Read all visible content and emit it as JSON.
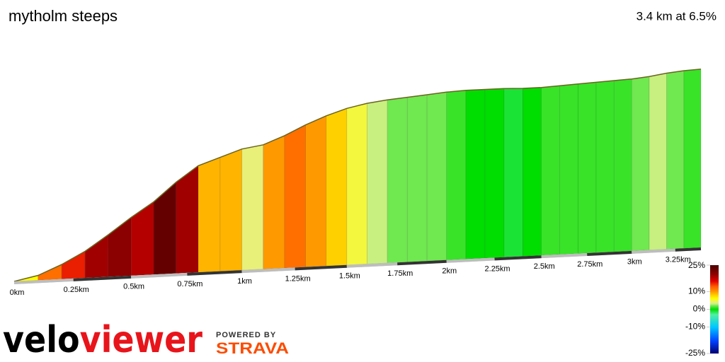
{
  "chart_data": {
    "type": "elevation",
    "title": "mytholm steeps",
    "subtitle": "3.4 km at 6.5%",
    "x": [
      0,
      0.1,
      0.2,
      0.3,
      0.4,
      0.5,
      0.6,
      0.7,
      0.8,
      0.9,
      1.0,
      1.1,
      1.2,
      1.3,
      1.4,
      1.5,
      1.6,
      1.7,
      1.8,
      1.9,
      2.0,
      2.1,
      2.2,
      2.3,
      2.4,
      2.5,
      2.6,
      2.7,
      2.8,
      2.9,
      3.0,
      3.1,
      3.2,
      3.3,
      3.4
    ],
    "values": [
      0,
      6,
      18,
      33,
      52,
      72,
      90,
      113,
      132,
      141,
      150,
      154,
      164,
      176,
      186,
      194,
      199,
      202,
      204,
      206,
      208,
      209,
      209,
      209,
      208,
      208,
      209,
      210,
      211,
      212,
      213,
      215,
      218,
      220,
      221
    ],
    "xlim": [
      0,
      3.4
    ],
    "ylim": [
      0,
      240
    ],
    "xticks": [
      {
        "value": 0,
        "label": "0km"
      },
      {
        "value": 0.25,
        "label": "0.25km"
      },
      {
        "value": 0.5,
        "label": "0.5km"
      },
      {
        "value": 0.75,
        "label": "0.75km"
      },
      {
        "value": 1,
        "label": "1km"
      },
      {
        "value": 1.25,
        "label": "1.25km"
      },
      {
        "value": 1.5,
        "label": "1.5km"
      },
      {
        "value": 1.75,
        "label": "1.75km"
      },
      {
        "value": 2,
        "label": "2km"
      },
      {
        "value": 2.25,
        "label": "2.25km"
      },
      {
        "value": 2.5,
        "label": "2.5km"
      },
      {
        "value": 2.75,
        "label": "2.75km"
      },
      {
        "value": 3,
        "label": "3km"
      },
      {
        "value": 3.25,
        "label": "3.25km"
      }
    ],
    "line_color": "#6b6420",
    "colorbar": {
      "lim": [
        -25,
        25
      ],
      "ticks": [
        {
          "value": 25,
          "label": "25%"
        },
        {
          "value": 10,
          "label": "10%"
        },
        {
          "value": 0,
          "label": "0%"
        },
        {
          "value": -10,
          "label": "-10%"
        },
        {
          "value": -25,
          "label": "-25%"
        }
      ],
      "colorscale": [
        [
          25,
          "#4a0000"
        ],
        [
          20,
          "#8b0000"
        ],
        [
          16,
          "#e00000"
        ],
        [
          13,
          "#ff5a00"
        ],
        [
          10,
          "#ff9900"
        ],
        [
          8,
          "#ffd000"
        ],
        [
          6,
          "#ffff00"
        ],
        [
          4,
          "#e8f07a"
        ],
        [
          3,
          "#c8f080"
        ],
        [
          2,
          "#70e850"
        ],
        [
          0,
          "#00dd00"
        ],
        [
          -3,
          "#50f0a0"
        ],
        [
          -10,
          "#00c8ff"
        ],
        [
          -18,
          "#0040ff"
        ],
        [
          -25,
          "#000070"
        ]
      ]
    }
  },
  "branding": {
    "velo": "velo",
    "viewer": "viewer",
    "powered_by": "POWERED BY",
    "strava": "STRAVA"
  }
}
